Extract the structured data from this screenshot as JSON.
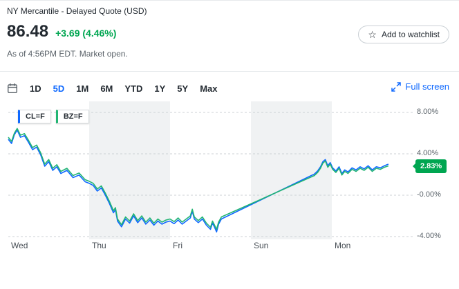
{
  "header": {
    "title": "NY Mercantile - Delayed Quote (USD)",
    "price": "86.48",
    "change": "+3.69 (4.46%)",
    "as_of": "As of 4:56PM EDT. Market open.",
    "watchlist_label": "Add to watchlist"
  },
  "icons": {
    "star": "☆"
  },
  "toolbar": {
    "ranges": [
      {
        "label": "1D",
        "selected": false
      },
      {
        "label": "5D",
        "selected": true
      },
      {
        "label": "1M",
        "selected": false
      },
      {
        "label": "6M",
        "selected": false
      },
      {
        "label": "YTD",
        "selected": false
      },
      {
        "label": "1Y",
        "selected": false
      },
      {
        "label": "5Y",
        "selected": false
      },
      {
        "label": "Max",
        "selected": false
      }
    ],
    "fullscreen_label": "Full screen"
  },
  "colors": {
    "blue": "#0f69ff",
    "green": "#00a651",
    "line_green": "#22b573",
    "text": "#232a31",
    "muted": "#5b636a",
    "band": "#f0f2f3",
    "grid": "#ccd1d6",
    "border": "#e6e9ec"
  },
  "chart_data": {
    "type": "line",
    "title": "5-day percent change, CL=F vs BZ=F",
    "x_labels": [
      "Wed",
      "Thu",
      "Fri",
      "Sun",
      "Mon"
    ],
    "y_tick_labels": [
      "8.00%",
      "4.00%",
      "-0.00%",
      "-4.00%"
    ],
    "y_tick_values": [
      8,
      4,
      0,
      -4
    ],
    "ylim": [
      -4.6,
      8.9
    ],
    "shaded_session_indices": [
      1,
      3
    ],
    "legend": [
      "CL=F",
      "BZ=F"
    ],
    "last_price_badge": {
      "text": "2.83%",
      "value": 2.83,
      "color": "#00a651"
    },
    "series": [
      {
        "name": "CL=F",
        "color": "#0f69ff",
        "points": [
          [
            0,
            5.4
          ],
          [
            0.008,
            5.0
          ],
          [
            0.015,
            5.85
          ],
          [
            0.022,
            6.3
          ],
          [
            0.03,
            5.6
          ],
          [
            0.04,
            5.75
          ],
          [
            0.05,
            5.1
          ],
          [
            0.06,
            4.4
          ],
          [
            0.07,
            4.65
          ],
          [
            0.08,
            3.9
          ],
          [
            0.09,
            2.8
          ],
          [
            0.1,
            3.25
          ],
          [
            0.11,
            2.4
          ],
          [
            0.12,
            2.75
          ],
          [
            0.13,
            2.1
          ],
          [
            0.145,
            2.4
          ],
          [
            0.16,
            1.7
          ],
          [
            0.175,
            1.95
          ],
          [
            0.19,
            1.3
          ],
          [
            0.2,
            1.15
          ],
          [
            0.21,
            0.95
          ],
          [
            0.22,
            0.4
          ],
          [
            0.23,
            0.7
          ],
          [
            0.24,
            0.0
          ],
          [
            0.25,
            -0.8
          ],
          [
            0.26,
            -1.7
          ],
          [
            0.265,
            -1.4
          ],
          [
            0.27,
            -2.5
          ],
          [
            0.28,
            -3.05
          ],
          [
            0.29,
            -2.3
          ],
          [
            0.3,
            -2.7
          ],
          [
            0.31,
            -2.0
          ],
          [
            0.32,
            -2.65
          ],
          [
            0.33,
            -2.2
          ],
          [
            0.34,
            -2.8
          ],
          [
            0.35,
            -2.4
          ],
          [
            0.36,
            -2.9
          ],
          [
            0.37,
            -2.5
          ],
          [
            0.38,
            -2.8
          ],
          [
            0.39,
            -2.6
          ],
          [
            0.4,
            -2.5
          ],
          [
            0.41,
            -2.75
          ],
          [
            0.42,
            -2.4
          ],
          [
            0.43,
            -2.8
          ],
          [
            0.44,
            -2.5
          ],
          [
            0.45,
            -2.2
          ],
          [
            0.455,
            -1.55
          ],
          [
            0.46,
            -2.3
          ],
          [
            0.47,
            -2.65
          ],
          [
            0.48,
            -2.3
          ],
          [
            0.49,
            -2.9
          ],
          [
            0.5,
            -3.3
          ],
          [
            0.505,
            -2.7
          ],
          [
            0.51,
            -3.1
          ],
          [
            0.515,
            -3.55
          ],
          [
            0.52,
            -2.8
          ],
          [
            0.527,
            -2.3
          ],
          [
            0.757,
            2.05
          ],
          [
            0.765,
            2.35
          ],
          [
            0.772,
            2.75
          ],
          [
            0.778,
            3.25
          ],
          [
            0.784,
            3.45
          ],
          [
            0.79,
            2.85
          ],
          [
            0.796,
            3.15
          ],
          [
            0.802,
            2.65
          ],
          [
            0.81,
            2.35
          ],
          [
            0.818,
            2.75
          ],
          [
            0.825,
            2.1
          ],
          [
            0.832,
            2.45
          ],
          [
            0.84,
            2.25
          ],
          [
            0.85,
            2.65
          ],
          [
            0.86,
            2.45
          ],
          [
            0.87,
            2.75
          ],
          [
            0.88,
            2.55
          ],
          [
            0.89,
            2.85
          ],
          [
            0.9,
            2.45
          ],
          [
            0.91,
            2.75
          ],
          [
            0.92,
            2.65
          ],
          [
            0.93,
            2.85
          ],
          [
            0.94,
            3.0
          ]
        ]
      },
      {
        "name": "BZ=F",
        "color": "#22b573",
        "points": [
          [
            0,
            5.6
          ],
          [
            0.008,
            5.2
          ],
          [
            0.015,
            6.0
          ],
          [
            0.022,
            6.45
          ],
          [
            0.03,
            5.8
          ],
          [
            0.04,
            5.95
          ],
          [
            0.05,
            5.3
          ],
          [
            0.06,
            4.6
          ],
          [
            0.07,
            4.85
          ],
          [
            0.08,
            4.1
          ],
          [
            0.09,
            3.0
          ],
          [
            0.1,
            3.45
          ],
          [
            0.11,
            2.6
          ],
          [
            0.12,
            2.95
          ],
          [
            0.13,
            2.3
          ],
          [
            0.145,
            2.6
          ],
          [
            0.16,
            1.9
          ],
          [
            0.175,
            2.15
          ],
          [
            0.19,
            1.5
          ],
          [
            0.2,
            1.35
          ],
          [
            0.21,
            1.15
          ],
          [
            0.22,
            0.6
          ],
          [
            0.23,
            0.9
          ],
          [
            0.24,
            0.2
          ],
          [
            0.25,
            -0.6
          ],
          [
            0.26,
            -1.5
          ],
          [
            0.265,
            -1.2
          ],
          [
            0.27,
            -2.3
          ],
          [
            0.28,
            -2.85
          ],
          [
            0.29,
            -2.1
          ],
          [
            0.3,
            -2.5
          ],
          [
            0.31,
            -1.8
          ],
          [
            0.32,
            -2.45
          ],
          [
            0.33,
            -2.0
          ],
          [
            0.34,
            -2.6
          ],
          [
            0.35,
            -2.2
          ],
          [
            0.36,
            -2.7
          ],
          [
            0.37,
            -2.3
          ],
          [
            0.38,
            -2.6
          ],
          [
            0.39,
            -2.4
          ],
          [
            0.4,
            -2.3
          ],
          [
            0.41,
            -2.55
          ],
          [
            0.42,
            -2.2
          ],
          [
            0.43,
            -2.6
          ],
          [
            0.44,
            -2.3
          ],
          [
            0.45,
            -2.0
          ],
          [
            0.455,
            -1.35
          ],
          [
            0.46,
            -2.1
          ],
          [
            0.47,
            -2.45
          ],
          [
            0.48,
            -2.1
          ],
          [
            0.49,
            -2.7
          ],
          [
            0.5,
            -3.1
          ],
          [
            0.505,
            -2.5
          ],
          [
            0.51,
            -2.9
          ],
          [
            0.515,
            -3.3
          ],
          [
            0.52,
            -2.6
          ],
          [
            0.527,
            -2.1
          ],
          [
            0.757,
            1.9
          ],
          [
            0.765,
            2.2
          ],
          [
            0.772,
            2.6
          ],
          [
            0.778,
            3.1
          ],
          [
            0.784,
            3.3
          ],
          [
            0.79,
            2.7
          ],
          [
            0.796,
            3.0
          ],
          [
            0.802,
            2.5
          ],
          [
            0.81,
            2.2
          ],
          [
            0.818,
            2.6
          ],
          [
            0.825,
            1.95
          ],
          [
            0.832,
            2.3
          ],
          [
            0.84,
            2.1
          ],
          [
            0.85,
            2.5
          ],
          [
            0.86,
            2.3
          ],
          [
            0.87,
            2.6
          ],
          [
            0.88,
            2.4
          ],
          [
            0.89,
            2.7
          ],
          [
            0.9,
            2.3
          ],
          [
            0.91,
            2.6
          ],
          [
            0.92,
            2.5
          ],
          [
            0.93,
            2.7
          ],
          [
            0.94,
            2.83
          ]
        ]
      }
    ]
  }
}
